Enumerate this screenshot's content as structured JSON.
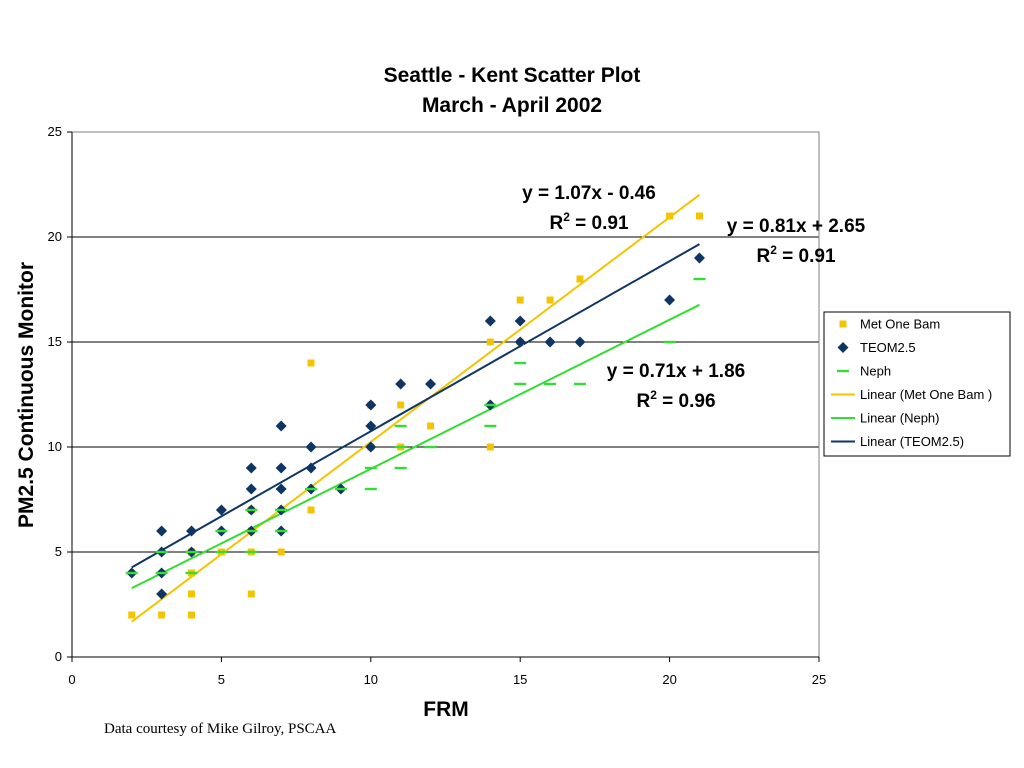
{
  "chart_data": {
    "type": "scatter",
    "title": [
      "Seattle - Kent Scatter Plot",
      "March - April 2002"
    ],
    "xlabel": "FRM",
    "ylabel": "PM2.5 Continuous Monitor",
    "xlim": [
      0,
      25
    ],
    "ylim": [
      0,
      25
    ],
    "xticks": [
      0,
      5,
      10,
      15,
      20,
      25
    ],
    "yticks": [
      0,
      5,
      10,
      15,
      20,
      25
    ],
    "grid": "horizontal major gridlines",
    "legend_position": "right",
    "series": [
      {
        "name": "Met One Bam",
        "marker": "square",
        "color": "#F5C400",
        "points": [
          [
            2,
            2
          ],
          [
            3,
            2
          ],
          [
            4,
            2
          ],
          [
            4,
            3
          ],
          [
            6,
            3
          ],
          [
            4,
            4
          ],
          [
            4,
            5
          ],
          [
            5,
            5
          ],
          [
            6,
            5
          ],
          [
            7,
            5
          ],
          [
            8,
            7
          ],
          [
            6,
            6
          ],
          [
            6,
            7
          ],
          [
            8,
            14
          ],
          [
            10,
            10
          ],
          [
            10,
            12
          ],
          [
            11,
            12
          ],
          [
            11,
            10
          ],
          [
            12,
            11
          ],
          [
            14,
            15
          ],
          [
            14,
            10
          ],
          [
            15,
            17
          ],
          [
            15,
            15
          ],
          [
            16,
            17
          ],
          [
            17,
            18
          ],
          [
            20,
            21
          ],
          [
            21,
            21
          ]
        ]
      },
      {
        "name": "TEOM2.5",
        "marker": "diamond",
        "color": "#0E3563",
        "points": [
          [
            2,
            4
          ],
          [
            3,
            3
          ],
          [
            3,
            4
          ],
          [
            3,
            5
          ],
          [
            3,
            6
          ],
          [
            4,
            5
          ],
          [
            4,
            6
          ],
          [
            5,
            6
          ],
          [
            5,
            7
          ],
          [
            6,
            6
          ],
          [
            6,
            7
          ],
          [
            6,
            8
          ],
          [
            6,
            9
          ],
          [
            7,
            6
          ],
          [
            7,
            7
          ],
          [
            7,
            8
          ],
          [
            7,
            9
          ],
          [
            7,
            11
          ],
          [
            8,
            8
          ],
          [
            8,
            9
          ],
          [
            8,
            10
          ],
          [
            9,
            8
          ],
          [
            10,
            10
          ],
          [
            10,
            11
          ],
          [
            10,
            12
          ],
          [
            11,
            13
          ],
          [
            12,
            13
          ],
          [
            14,
            12
          ],
          [
            14,
            16
          ],
          [
            15,
            15
          ],
          [
            15,
            16
          ],
          [
            16,
            15
          ],
          [
            17,
            15
          ],
          [
            20,
            17
          ],
          [
            21,
            19
          ]
        ]
      },
      {
        "name": "Neph",
        "marker": "dash",
        "color": "#33DD33",
        "points": [
          [
            2,
            4
          ],
          [
            3,
            4
          ],
          [
            3,
            5
          ],
          [
            4,
            4
          ],
          [
            4,
            5
          ],
          [
            5,
            5
          ],
          [
            5,
            6
          ],
          [
            6,
            5
          ],
          [
            6,
            6
          ],
          [
            6,
            7
          ],
          [
            7,
            6
          ],
          [
            7,
            7
          ],
          [
            8,
            8
          ],
          [
            9,
            8
          ],
          [
            10,
            8
          ],
          [
            10,
            9
          ],
          [
            11,
            9
          ],
          [
            11,
            10
          ],
          [
            11,
            11
          ],
          [
            12,
            10
          ],
          [
            14,
            11
          ],
          [
            14,
            12
          ],
          [
            15,
            13
          ],
          [
            15,
            14
          ],
          [
            16,
            13
          ],
          [
            17,
            13
          ],
          [
            20,
            15
          ],
          [
            21,
            18
          ]
        ]
      }
    ],
    "trendlines": [
      {
        "name": "Linear (Met One Bam )",
        "color": "#F5C400",
        "slope": 1.07,
        "intercept": -0.46,
        "x_range": [
          2,
          21
        ]
      },
      {
        "name": "Linear (Neph)",
        "color": "#33DD33",
        "slope": 0.71,
        "intercept": 1.86,
        "x_range": [
          2,
          21
        ]
      },
      {
        "name": "Linear (TEOM2.5)",
        "color": "#0E3563",
        "slope": 0.81,
        "intercept": 2.65,
        "x_range": [
          2,
          21
        ]
      }
    ],
    "annotations": [
      {
        "equation": "y = 1.07x - 0.46",
        "r2_prefix": "R",
        "r2_sup": "2",
        "r2_value": " = 0.91"
      },
      {
        "equation": "y = 0.81x + 2.65",
        "r2_prefix": "R",
        "r2_sup": "2",
        "r2_value": " = 0.91"
      },
      {
        "equation": "y = 0.71x + 1.86",
        "r2_prefix": "R",
        "r2_sup": "2",
        "r2_value": " = 0.96"
      }
    ],
    "legend": [
      {
        "label": "Met One Bam",
        "kind": "marker",
        "series": 0
      },
      {
        "label": "TEOM2.5",
        "kind": "marker",
        "series": 1
      },
      {
        "label": "Neph",
        "kind": "marker",
        "series": 2
      },
      {
        "label": "Linear (Met One Bam )",
        "kind": "line",
        "trend": 0
      },
      {
        "label": "Linear (Neph)",
        "kind": "line",
        "trend": 1
      },
      {
        "label": "Linear (TEOM2.5)",
        "kind": "line",
        "trend": 2
      }
    ]
  },
  "footer": {
    "credit": "Data courtesy of Mike Gilroy, PSCAA"
  }
}
